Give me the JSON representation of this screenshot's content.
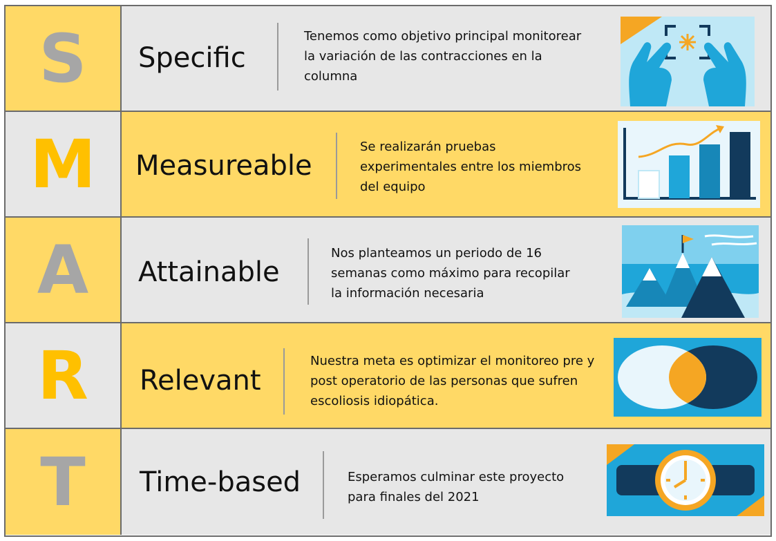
{
  "rows": [
    {
      "letter": "S",
      "word": "Specific",
      "lines": [
        "Tenemos como objetivo principal monitorear",
        "la variación de las contracciones en la",
        "columna"
      ],
      "icon": "hands-focus-icon"
    },
    {
      "letter": "M",
      "word": "Measureable",
      "lines": [
        "Se realizarán pruebas",
        "experimentales entre los miembros",
        "del equipo"
      ],
      "icon": "bar-chart-growth-icon"
    },
    {
      "letter": "A",
      "word": "Attainable",
      "lines": [
        "Nos planteamos un periodo de 16",
        "semanas como máximo para recopilar",
        "la información necesaria"
      ],
      "icon": "mountain-flag-icon"
    },
    {
      "letter": "R",
      "word": "Relevant",
      "lines": [
        "Nuestra meta es optimizar el monitoreo pre y",
        "post operatorio de las personas que sufren",
        "escoliosis idiopática."
      ],
      "icon": "venn-overlap-icon"
    },
    {
      "letter": "T",
      "word": "Time-based",
      "lines": [
        "Esperamos culminar este proyecto",
        "para finales del 2021"
      ],
      "icon": "wristwatch-icon"
    }
  ],
  "colors": {
    "yellow": "#ffd966",
    "light_gray": "#e7e7e7",
    "letter_gray": "#a6a6a6",
    "letter_gold": "#ffc000",
    "icon_blue": "#1fa6d9",
    "icon_navy": "#123a5c",
    "icon_orange": "#f5a623"
  }
}
